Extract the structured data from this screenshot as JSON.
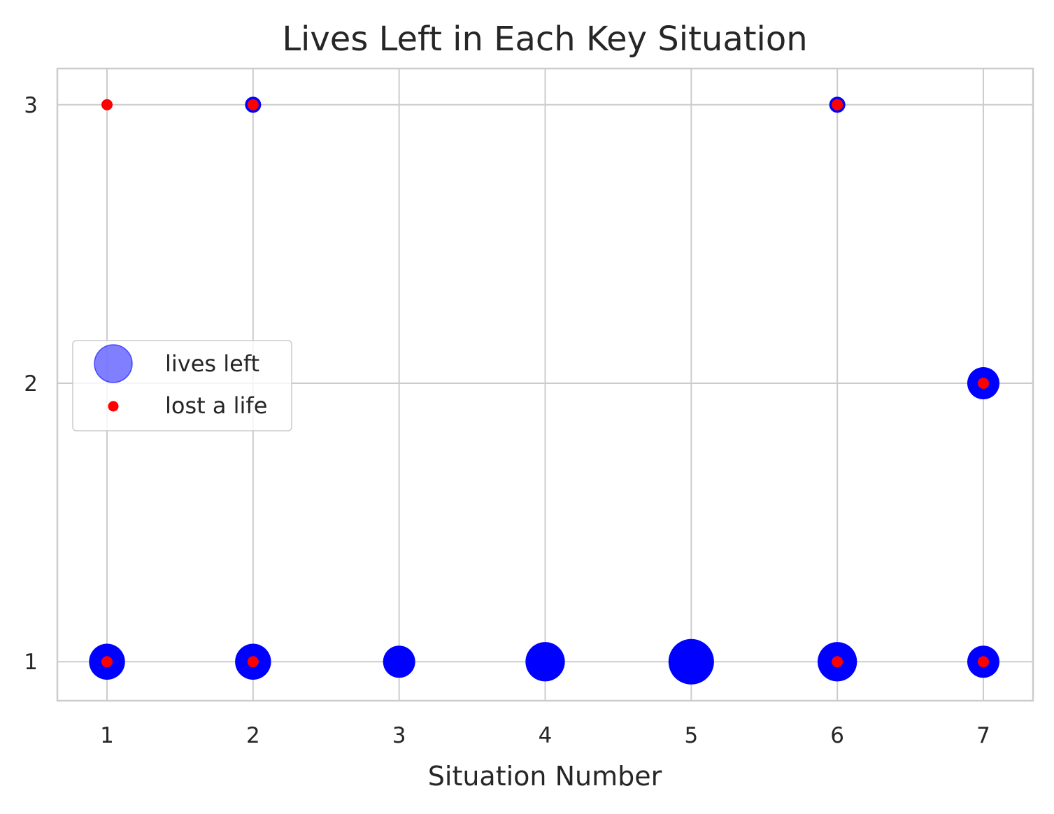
{
  "chart_data": {
    "type": "scatter",
    "title": "Lives Left in Each Key Situation",
    "xlabel": "Situation Number",
    "ylabel": "",
    "xlim": [
      0.66,
      7.34
    ],
    "ylim": [
      0.86,
      3.13
    ],
    "xticks": [
      1,
      2,
      3,
      4,
      5,
      6,
      7
    ],
    "yticks": [
      1,
      2,
      3
    ],
    "grid": true,
    "legend_position": "center-left",
    "series": [
      {
        "name": "lives left",
        "color": "#0000ff",
        "legend_alpha": 0.5,
        "points": [
          {
            "x": 1,
            "y": 1,
            "size": 5
          },
          {
            "x": 2,
            "y": 1,
            "size": 5
          },
          {
            "x": 3,
            "y": 1,
            "size": 4
          },
          {
            "x": 4,
            "y": 1,
            "size": 6
          },
          {
            "x": 5,
            "y": 1,
            "size": 8
          },
          {
            "x": 6,
            "y": 1,
            "size": 6
          },
          {
            "x": 7,
            "y": 1,
            "size": 4
          },
          {
            "x": 2,
            "y": 3,
            "size": 1
          },
          {
            "x": 6,
            "y": 3,
            "size": 1
          },
          {
            "x": 7,
            "y": 2,
            "size": 4
          }
        ]
      },
      {
        "name": "lost a life",
        "color": "#ff0000",
        "points": [
          {
            "x": 1,
            "y": 1
          },
          {
            "x": 1,
            "y": 3
          },
          {
            "x": 2,
            "y": 1
          },
          {
            "x": 2,
            "y": 3
          },
          {
            "x": 6,
            "y": 1
          },
          {
            "x": 6,
            "y": 3
          },
          {
            "x": 7,
            "y": 1
          },
          {
            "x": 7,
            "y": 2
          }
        ]
      }
    ]
  }
}
